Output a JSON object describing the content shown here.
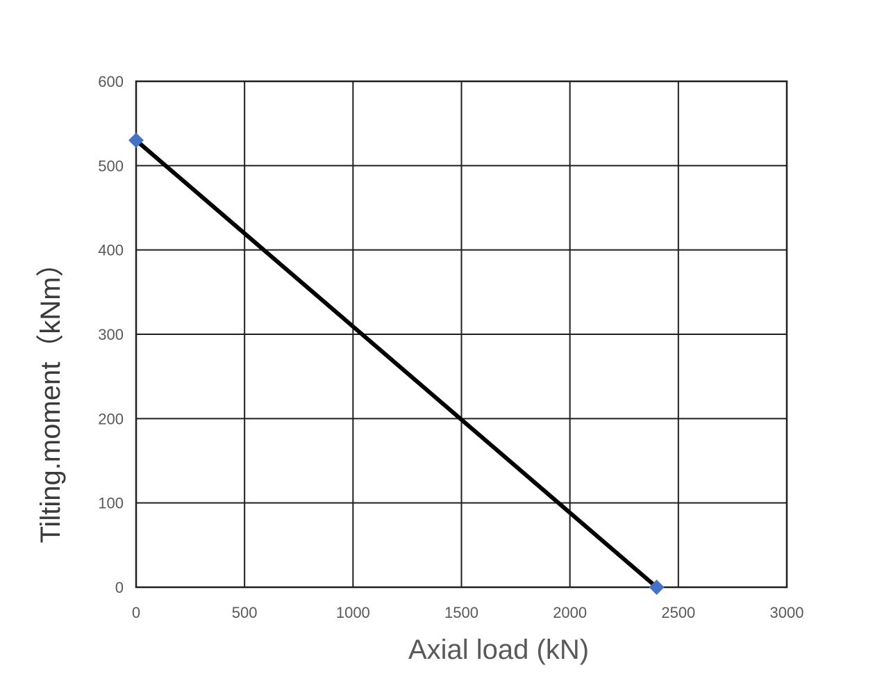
{
  "chart_data": {
    "type": "line",
    "title": "",
    "xlabel": "Axial load (kN)",
    "ylabel": "Tilting.moment（kNm）",
    "xlim": [
      0,
      3000
    ],
    "ylim": [
      0,
      600
    ],
    "xticks": [
      "0",
      "500",
      "1000",
      "1500",
      "2000",
      "2500",
      "3000"
    ],
    "yticks": [
      "0",
      "100",
      "200",
      "300",
      "400",
      "500",
      "600"
    ],
    "grid": true,
    "legend": "none",
    "series": [
      {
        "x": [
          0,
          2400
        ],
        "y": [
          530,
          0
        ],
        "line_color": "#000000",
        "marker": "diamond",
        "marker_color": "#4472C4"
      }
    ]
  }
}
